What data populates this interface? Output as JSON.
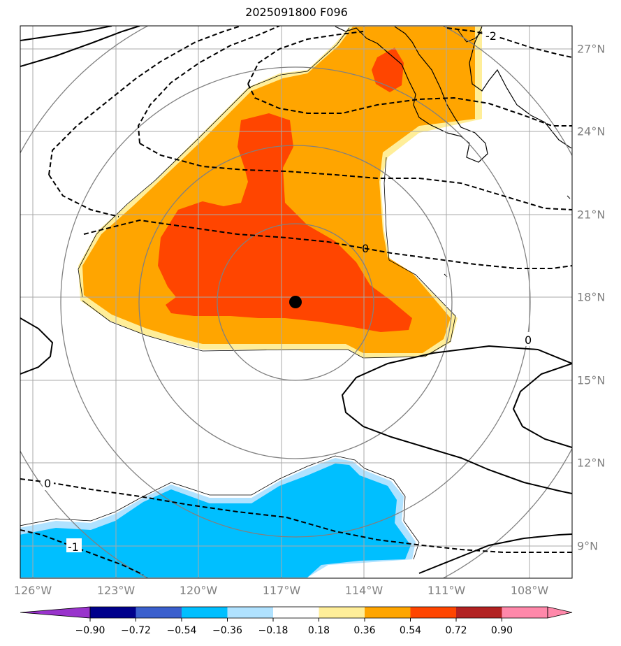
{
  "title": "2025091800 F096",
  "map": {
    "lon_labels": [
      "126°W",
      "123°W",
      "120°W",
      "117°W",
      "114°W",
      "111°W",
      "108°W"
    ],
    "lat_labels": [
      "27°N",
      "24°N",
      "21°N",
      "18°N",
      "15°N",
      "12°N",
      "9°N"
    ],
    "contour_labels": [
      "0",
      "0",
      "0",
      "-2",
      "-1"
    ],
    "storm_center": {
      "lon": -116.5,
      "lat": 17.8
    }
  },
  "colorbar": {
    "ticks": [
      "−0.90",
      "−0.72",
      "−0.54",
      "−0.36",
      "−0.18",
      "0.18",
      "0.36",
      "0.54",
      "0.72",
      "0.90"
    ],
    "colors": [
      "#9933cc",
      "#00008b",
      "#3a5fcd",
      "#00bfff",
      "#b0e2ff",
      "#ffffff",
      "#ffee99",
      "#ffa500",
      "#ff4500",
      "#b22222",
      "#ff88aa",
      "#ff88aa"
    ]
  },
  "colors": {
    "grid": "#a9a9a9",
    "rings": "#808080",
    "label": "#808080"
  }
}
